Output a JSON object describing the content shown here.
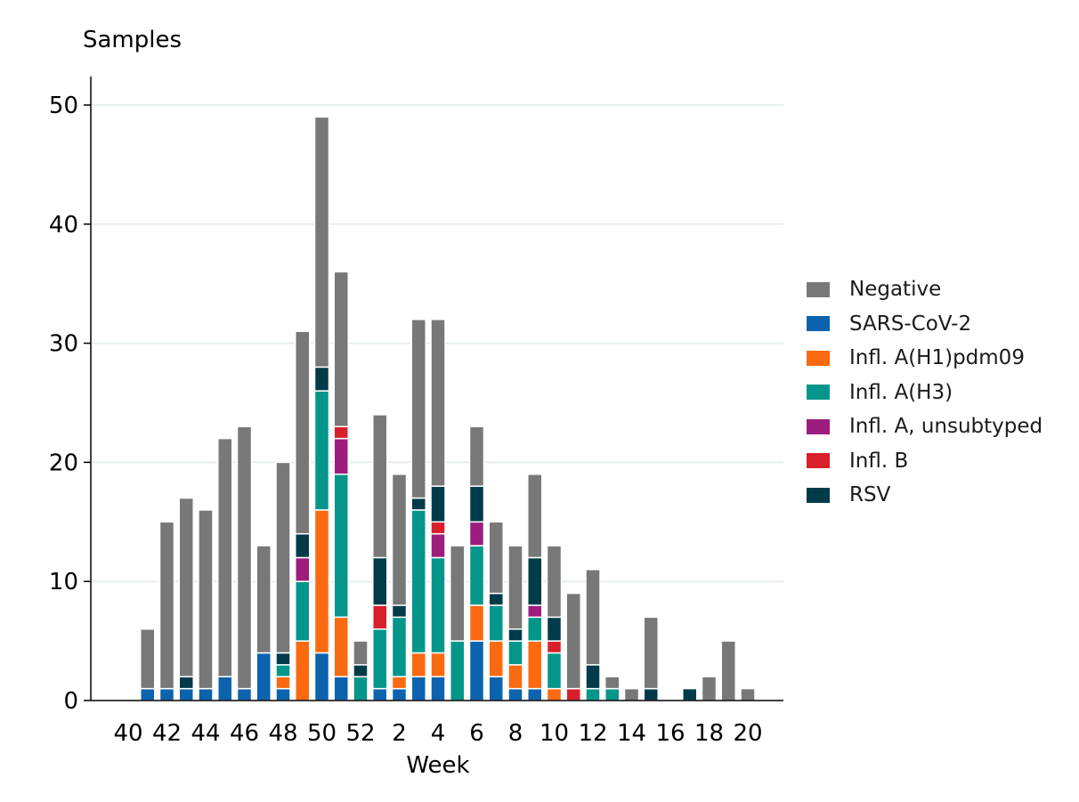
{
  "chart_data": {
    "type": "bar",
    "stacked": true,
    "ylabel": "Samples",
    "xlabel": "Week",
    "ylim": [
      0,
      52
    ],
    "yticks": [
      0,
      10,
      20,
      30,
      40,
      50
    ],
    "grid": "horizontal",
    "legend_position": "right",
    "categories": [
      "40",
      "41",
      "42",
      "43",
      "44",
      "45",
      "46",
      "47",
      "48",
      "49",
      "50",
      "51",
      "52",
      "1",
      "2",
      "3",
      "4",
      "5",
      "6",
      "7",
      "8",
      "9",
      "10",
      "11",
      "12",
      "13",
      "14",
      "15",
      "16",
      "17",
      "18",
      "19",
      "20"
    ],
    "xtick_labels": [
      "40",
      "42",
      "44",
      "46",
      "48",
      "50",
      "52",
      "2",
      "4",
      "6",
      "8",
      "10",
      "12",
      "14",
      "16",
      "18",
      "20"
    ],
    "series": [
      {
        "name": "SARS-CoV-2",
        "color": "#0b63ad",
        "values": [
          0,
          1,
          1,
          1,
          1,
          2,
          1,
          4,
          1,
          0,
          4,
          2,
          0,
          1,
          1,
          2,
          2,
          0,
          5,
          2,
          1,
          1,
          0,
          0,
          0,
          0,
          0,
          0,
          0,
          0,
          0,
          0,
          0
        ]
      },
      {
        "name": "Infl. A(H1)pdm09",
        "color": "#fb6a10",
        "values": [
          0,
          0,
          0,
          0,
          0,
          0,
          0,
          0,
          1,
          5,
          12,
          5,
          0,
          0,
          1,
          2,
          2,
          0,
          3,
          3,
          2,
          4,
          1,
          0,
          0,
          0,
          0,
          0,
          0,
          0,
          0,
          0,
          0
        ]
      },
      {
        "name": "Infl. A(H3)",
        "color": "#04968a",
        "values": [
          0,
          0,
          0,
          0,
          0,
          0,
          0,
          0,
          1,
          5,
          10,
          12,
          2,
          5,
          5,
          12,
          8,
          5,
          5,
          3,
          2,
          2,
          3,
          0,
          1,
          1,
          0,
          0,
          0,
          0,
          0,
          0,
          0
        ]
      },
      {
        "name": "Infl. A, unsubtyped",
        "color": "#9c1d7e",
        "values": [
          0,
          0,
          0,
          0,
          0,
          0,
          0,
          0,
          0,
          2,
          0,
          3,
          0,
          0,
          0,
          0,
          2,
          0,
          2,
          0,
          0,
          1,
          0,
          0,
          0,
          0,
          0,
          0,
          0,
          0,
          0,
          0,
          0
        ]
      },
      {
        "name": "Infl. B",
        "color": "#d81f2a",
        "values": [
          0,
          0,
          0,
          0,
          0,
          0,
          0,
          0,
          0,
          0,
          0,
          1,
          0,
          2,
          0,
          0,
          1,
          0,
          0,
          0,
          0,
          0,
          1,
          1,
          0,
          0,
          0,
          0,
          0,
          0,
          0,
          0,
          0
        ]
      },
      {
        "name": "RSV",
        "color": "#003b4a",
        "values": [
          0,
          0,
          0,
          1,
          0,
          0,
          0,
          0,
          1,
          2,
          2,
          0,
          1,
          4,
          1,
          1,
          3,
          0,
          3,
          1,
          1,
          4,
          2,
          0,
          2,
          0,
          0,
          1,
          0,
          1,
          0,
          0,
          0
        ]
      },
      {
        "name": "Negative",
        "color": "#787878",
        "values": [
          0,
          5,
          14,
          15,
          15,
          20,
          22,
          9,
          16,
          17,
          21,
          13,
          2,
          12,
          11,
          15,
          14,
          8,
          5,
          6,
          7,
          7,
          6,
          8,
          8,
          1,
          1,
          6,
          0,
          0,
          2,
          5,
          1
        ]
      }
    ],
    "legend_order": [
      "Negative",
      "SARS-CoV-2",
      "Infl. A(H1)pdm09",
      "Infl. A(H3)",
      "Infl. A, unsubtyped",
      "Infl. B",
      "RSV"
    ]
  }
}
